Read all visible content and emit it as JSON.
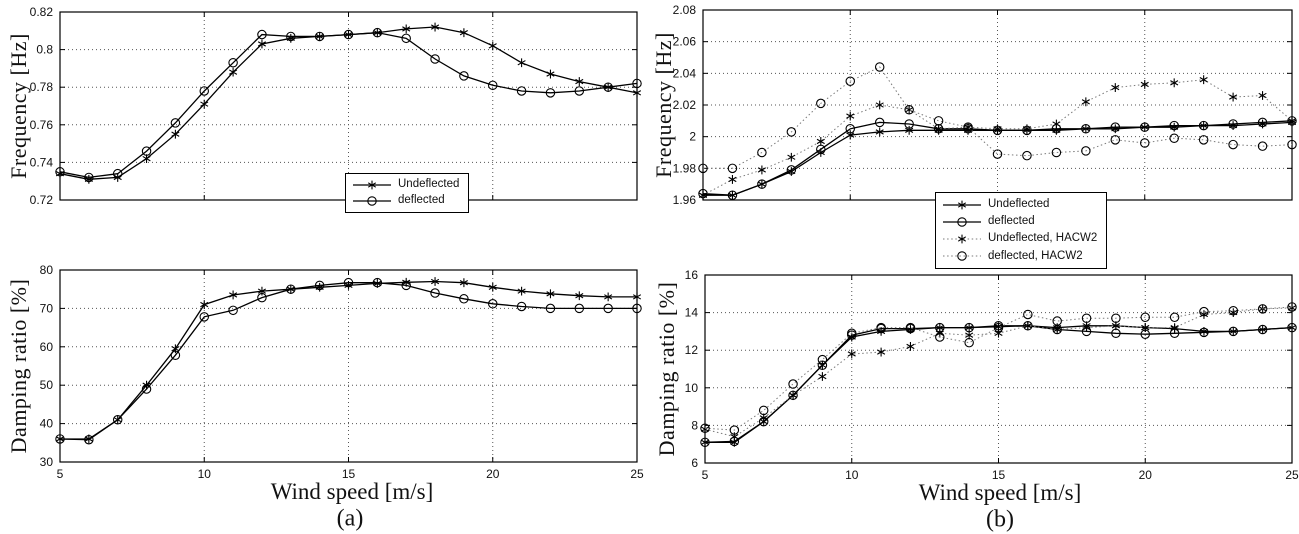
{
  "figure": {
    "background": "#ffffff",
    "captions": {
      "a": "(a)",
      "b": "(b)"
    },
    "colors": {
      "axis": "#000000",
      "solid_line": "#000000",
      "dotted_line": "#7a7a7a",
      "grid": "#555555",
      "marker": "#000000",
      "text": "#111111"
    }
  },
  "chart_data": [
    {
      "id": "freq_a",
      "type": "line",
      "title": "",
      "xlabel": "",
      "ylabel": "Frequency [Hz]",
      "x": [
        5,
        6,
        7,
        8,
        9,
        10,
        11,
        12,
        13,
        14,
        15,
        16,
        17,
        18,
        19,
        20,
        21,
        22,
        23,
        24,
        25
      ],
      "xlim": [
        5,
        25
      ],
      "ylim": [
        0.72,
        0.82
      ],
      "xticks": [
        5,
        10,
        15,
        20,
        25
      ],
      "xtick_labels": [
        "5",
        "10",
        "15",
        "20",
        "25"
      ],
      "yticks": [
        0.72,
        0.74,
        0.76,
        0.78,
        0.8,
        0.82
      ],
      "ytick_labels": [
        "0.72",
        "0.74",
        "0.76",
        "0.78",
        "0.8",
        "0.82"
      ],
      "grid": true,
      "legend_position": "south",
      "series": [
        {
          "name": "Undeflected",
          "marker": "asterisk",
          "linestyle": "solid",
          "values": [
            0.734,
            0.731,
            0.732,
            0.742,
            0.755,
            0.771,
            0.788,
            0.803,
            0.806,
            0.807,
            0.808,
            0.809,
            0.811,
            0.812,
            0.809,
            0.802,
            0.793,
            0.787,
            0.783,
            0.78,
            0.777
          ]
        },
        {
          "name": "deflected",
          "marker": "circle",
          "linestyle": "solid",
          "values": [
            0.735,
            0.732,
            0.734,
            0.746,
            0.761,
            0.778,
            0.793,
            0.808,
            0.807,
            0.807,
            0.808,
            0.809,
            0.806,
            0.795,
            0.786,
            0.781,
            0.778,
            0.777,
            0.778,
            0.78,
            0.782
          ]
        }
      ]
    },
    {
      "id": "damp_a",
      "type": "line",
      "title": "",
      "xlabel": "Wind speed [m/s]",
      "ylabel": "Damping ratio [%]",
      "x": [
        5,
        6,
        7,
        8,
        9,
        10,
        11,
        12,
        13,
        14,
        15,
        16,
        17,
        18,
        19,
        20,
        21,
        22,
        23,
        24,
        25
      ],
      "xlim": [
        5,
        25
      ],
      "ylim": [
        30,
        80
      ],
      "xticks": [
        5,
        10,
        15,
        20,
        25
      ],
      "xtick_labels": [
        "5",
        "10",
        "15",
        "20",
        "25"
      ],
      "yticks": [
        30,
        40,
        50,
        60,
        70,
        80
      ],
      "ytick_labels": [
        "30",
        "40",
        "50",
        "60",
        "70",
        "80"
      ],
      "grid": true,
      "series": [
        {
          "name": "Undeflected",
          "marker": "asterisk",
          "linestyle": "solid",
          "values": [
            36,
            36,
            41,
            50,
            59.5,
            71,
            73.5,
            74.5,
            75,
            75.5,
            76,
            76.5,
            76.8,
            77,
            76.7,
            75.5,
            74.5,
            73.8,
            73.3,
            73,
            73
          ]
        },
        {
          "name": "deflected",
          "marker": "circle",
          "linestyle": "solid",
          "values": [
            36,
            35.8,
            41,
            49,
            57.8,
            67.8,
            69.5,
            72.8,
            75,
            76,
            76.7,
            76.7,
            76,
            74,
            72.5,
            71.2,
            70.5,
            70,
            70,
            70,
            70
          ]
        }
      ]
    },
    {
      "id": "freq_b",
      "type": "line",
      "title": "",
      "xlabel": "",
      "ylabel": "Frequency [Hz]",
      "x": [
        5,
        6,
        7,
        8,
        9,
        10,
        11,
        12,
        13,
        14,
        15,
        16,
        17,
        18,
        19,
        20,
        21,
        22,
        23,
        24,
        25
      ],
      "xlim": [
        5,
        25
      ],
      "ylim": [
        1.96,
        2.08
      ],
      "xticks": [
        5,
        10,
        15,
        20,
        25
      ],
      "xtick_labels": [
        "5",
        "10",
        "15",
        "20",
        "25"
      ],
      "yticks": [
        1.96,
        1.98,
        2,
        2.02,
        2.04,
        2.06,
        2.08
      ],
      "ytick_labels": [
        "1.96",
        "1.98",
        "2",
        "2.02",
        "2.04",
        "2.06",
        "2.08"
      ],
      "grid": true,
      "legend_position": "south",
      "series": [
        {
          "name": "Undeflected",
          "marker": "asterisk",
          "linestyle": "solid",
          "values": [
            1.963,
            1.963,
            1.97,
            1.978,
            1.99,
            2.001,
            2.003,
            2.004,
            2.004,
            2.004,
            2.004,
            2.004,
            2.004,
            2.005,
            2.005,
            2.006,
            2.006,
            2.007,
            2.007,
            2.008,
            2.009
          ]
        },
        {
          "name": "deflected",
          "marker": "circle",
          "linestyle": "solid",
          "values": [
            1.964,
            1.963,
            1.97,
            1.979,
            1.992,
            2.005,
            2.009,
            2.008,
            2.005,
            2.005,
            2.004,
            2.004,
            2.005,
            2.005,
            2.006,
            2.006,
            2.007,
            2.007,
            2.008,
            2.009,
            2.01
          ]
        },
        {
          "name": "Undeflected, HACW2",
          "marker": "asterisk",
          "linestyle": "dotted",
          "values": [
            1.963,
            1.973,
            1.979,
            1.987,
            1.997,
            2.013,
            2.02,
            2.017,
            2.005,
            2.006,
            2.005,
            2.005,
            2.008,
            2.022,
            2.031,
            2.033,
            2.034,
            2.036,
            2.025,
            2.026,
            2.01
          ]
        },
        {
          "name": "deflected, HACW2",
          "marker": "circle",
          "linestyle": "dotted",
          "values": [
            1.98,
            1.98,
            1.99,
            2.003,
            2.021,
            2.035,
            2.044,
            2.017,
            2.01,
            2.006,
            1.989,
            1.988,
            1.99,
            1.991,
            1.998,
            1.996,
            1.999,
            1.998,
            1.995,
            1.994,
            1.995
          ]
        }
      ]
    },
    {
      "id": "damp_b",
      "type": "line",
      "title": "",
      "xlabel": "Wind speed [m/s]",
      "ylabel": "Damping ratio [%]",
      "x": [
        5,
        6,
        7,
        8,
        9,
        10,
        11,
        12,
        13,
        14,
        15,
        16,
        17,
        18,
        19,
        20,
        21,
        22,
        23,
        24,
        25
      ],
      "xlim": [
        5,
        25
      ],
      "ylim": [
        6,
        16
      ],
      "xticks": [
        5,
        10,
        15,
        20,
        25
      ],
      "xtick_labels": [
        "5",
        "10",
        "15",
        "20",
        "25"
      ],
      "yticks": [
        6,
        8,
        10,
        12,
        14,
        16
      ],
      "ytick_labels": [
        "6",
        "8",
        "10",
        "12",
        "14",
        "16"
      ],
      "grid": true,
      "series": [
        {
          "name": "Undeflected",
          "marker": "asterisk",
          "linestyle": "solid",
          "values": [
            7.1,
            7.1,
            8.2,
            9.6,
            11.2,
            12.7,
            13.0,
            13.1,
            13.2,
            13.2,
            13.25,
            13.3,
            13.2,
            13.3,
            13.3,
            13.2,
            13.15,
            13.0,
            13.0,
            13.1,
            13.2
          ]
        },
        {
          "name": "deflected",
          "marker": "circle",
          "linestyle": "solid",
          "values": [
            7.1,
            7.15,
            8.2,
            9.6,
            11.2,
            12.8,
            13.15,
            13.15,
            13.2,
            13.2,
            13.3,
            13.3,
            13.1,
            13.0,
            12.9,
            12.85,
            12.9,
            12.95,
            13.0,
            13.1,
            13.2
          ]
        },
        {
          "name": "Undeflected, HACW2",
          "marker": "asterisk",
          "linestyle": "dotted",
          "values": [
            7.8,
            7.4,
            8.4,
            9.6,
            10.6,
            11.8,
            11.9,
            12.2,
            12.9,
            12.8,
            12.9,
            13.3,
            13.1,
            13.2,
            13.3,
            13.2,
            13.2,
            13.9,
            14.0,
            14.2,
            14.25
          ]
        },
        {
          "name": "deflected, HACW2",
          "marker": "circle",
          "linestyle": "dotted",
          "values": [
            7.85,
            7.75,
            8.8,
            10.2,
            11.5,
            12.9,
            13.2,
            13.2,
            12.7,
            12.4,
            13.2,
            13.9,
            13.55,
            13.7,
            13.7,
            13.75,
            13.75,
            14.05,
            14.1,
            14.2,
            14.3
          ]
        }
      ]
    }
  ],
  "legends": {
    "a": {
      "entries": [
        {
          "label": "Undeflected",
          "marker": "asterisk",
          "linestyle": "solid"
        },
        {
          "label": "deflected",
          "marker": "circle",
          "linestyle": "solid"
        }
      ]
    },
    "b": {
      "entries": [
        {
          "label": "Undeflected",
          "marker": "asterisk",
          "linestyle": "solid"
        },
        {
          "label": "deflected",
          "marker": "circle",
          "linestyle": "solid"
        },
        {
          "label": "Undeflected, HACW2",
          "marker": "asterisk",
          "linestyle": "dotted"
        },
        {
          "label": "deflected, HACW2",
          "marker": "circle",
          "linestyle": "dotted"
        }
      ]
    }
  }
}
